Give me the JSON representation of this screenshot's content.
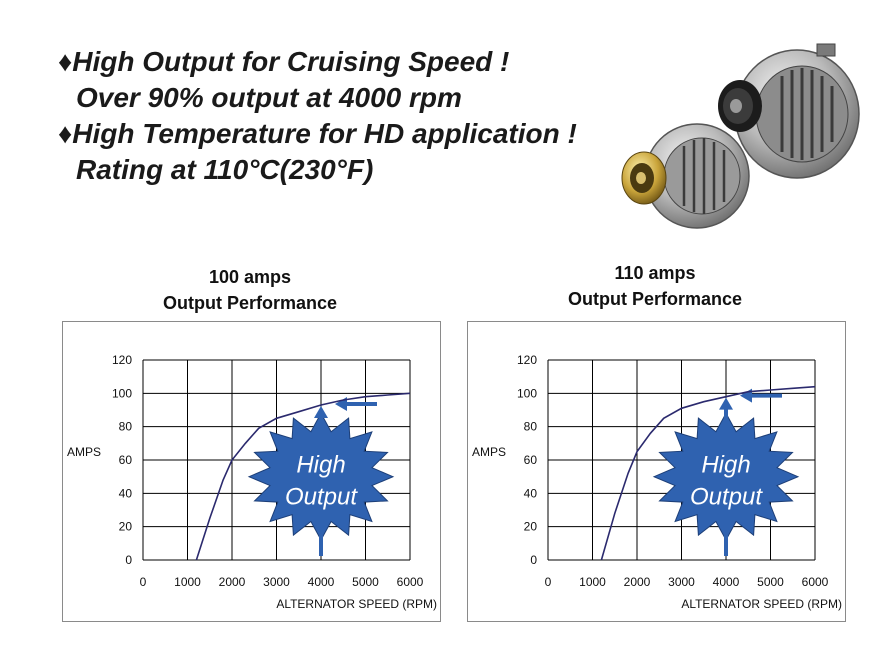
{
  "headline": {
    "line1": "♦High Output for Cruising Speed !",
    "line2": "Over 90% output at 4000 rpm",
    "line3": "♦High Temperature for HD application !",
    "line4": "Rating at 110°C(230°F)"
  },
  "chart_data": [
    {
      "type": "line",
      "title_line1": "100 amps",
      "title_line2": "Output Performance",
      "xlabel": "ALTERNATOR SPEED (RPM)",
      "ylabel": "AMPS",
      "xlim": [
        0,
        6000
      ],
      "ylim": [
        0,
        120
      ],
      "x_ticks": [
        "0",
        "1000",
        "2000",
        "3000",
        "4000",
        "5000",
        "6000"
      ],
      "y_ticks": [
        "0",
        "20",
        "40",
        "60",
        "80",
        "100",
        "120"
      ],
      "grid": true,
      "series": [
        {
          "x": [
            1200,
            1500,
            1800,
            2000,
            2300,
            2600,
            3000,
            3500,
            4000,
            4500,
            5000,
            5500,
            6000
          ],
          "y": [
            0,
            25,
            48,
            60,
            70,
            79,
            85,
            89,
            93,
            96,
            98,
            99,
            100
          ]
        }
      ],
      "callout_line1": "High",
      "callout_line2": "Output",
      "arrow_target": {
        "x": 4000,
        "y": 93
      },
      "colors": {
        "curve": "#2b2a6e",
        "callout_fill": "#2f62b0",
        "arrow": "#2f62b0"
      }
    },
    {
      "type": "line",
      "title_line1": "110 amps",
      "title_line2": "Output Performance",
      "xlabel": "ALTERNATOR SPEED (RPM)",
      "ylabel": "AMPS",
      "xlim": [
        0,
        6000
      ],
      "ylim": [
        0,
        120
      ],
      "x_ticks": [
        "0",
        "1000",
        "2000",
        "3000",
        "4000",
        "5000",
        "6000"
      ],
      "y_ticks": [
        "0",
        "20",
        "40",
        "60",
        "80",
        "100",
        "120"
      ],
      "grid": true,
      "series": [
        {
          "x": [
            1200,
            1500,
            1800,
            2000,
            2300,
            2600,
            3000,
            3500,
            4000,
            4500,
            5000,
            5500,
            6000
          ],
          "y": [
            0,
            28,
            52,
            65,
            76,
            85,
            91,
            95,
            98,
            101,
            102,
            103,
            104
          ]
        }
      ],
      "callout_line1": "High",
      "callout_line2": "Output",
      "arrow_target": {
        "x": 4000,
        "y": 98
      },
      "colors": {
        "curve": "#2b2a6e",
        "callout_fill": "#2f62b0",
        "arrow": "#2f62b0"
      }
    }
  ]
}
